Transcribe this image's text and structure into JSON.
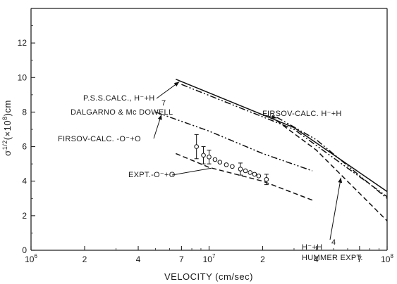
{
  "chart_data": {
    "type": "line",
    "x_scale": "log",
    "xlim": [
      1000000,
      100000000
    ],
    "ylim": [
      0,
      14
    ],
    "grid": false,
    "xlabel": "VELOCITY (cm/sec)",
    "ylabel": {
      "base": "σ",
      "sup": "1/2",
      "rest": "(×10",
      "sup2": "8",
      "tail": ")cm"
    },
    "x_ticks": [
      {
        "value": 1000000,
        "base": "10",
        "exp": "6"
      },
      {
        "value": 2000000,
        "label": "2"
      },
      {
        "value": 4000000,
        "label": "4"
      },
      {
        "value": 7000000,
        "label": "7"
      },
      {
        "value": 10000000,
        "base": "10",
        "exp": "7"
      },
      {
        "value": 20000000,
        "label": "2"
      },
      {
        "value": 40000000,
        "label": "4"
      },
      {
        "value": 70000000,
        "label": "7"
      },
      {
        "value": 100000000,
        "base": "10",
        "exp": "8"
      }
    ],
    "y_ticks": [
      0,
      2,
      4,
      6,
      8,
      10,
      12
    ],
    "series": [
      {
        "key": "pss",
        "dash": "solid",
        "x": [
          6500000,
          30000000,
          100000000
        ],
        "y": [
          9.9,
          7.1,
          3.4
        ]
      },
      {
        "key": "dalgarno",
        "dash": "dashdotdot",
        "x": [
          7000000,
          30000000,
          100000000
        ],
        "y": [
          9.6,
          7.0,
          3.1
        ]
      },
      {
        "key": "firsov_h",
        "dash": "dashdotdot",
        "x": [
          24000000,
          40000000,
          100000000
        ],
        "y": [
          7.7,
          6.4,
          3.0
        ]
      },
      {
        "key": "hummer",
        "dash": "dashed",
        "x": [
          24000000,
          40000000,
          100000000
        ],
        "y": [
          7.5,
          5.8,
          1.7
        ]
      },
      {
        "key": "firsov_o",
        "dash": "dashdotdot",
        "x": [
          5000000,
          10000000,
          20000000,
          38000000
        ],
        "y": [
          8.0,
          6.9,
          5.6,
          4.6
        ]
      },
      {
        "key": "expt_fit",
        "dash": "dashed",
        "x": [
          6500000,
          10000000,
          20000000,
          38000000
        ],
        "y": [
          5.6,
          4.8,
          4.0,
          2.9
        ]
      }
    ],
    "expt_points": [
      {
        "x": 8500000,
        "y": 6.0,
        "err": 0.7
      },
      {
        "x": 9300000,
        "y": 5.5,
        "err": 0.5
      },
      {
        "x": 10000000,
        "y": 5.4,
        "err": 0.4
      },
      {
        "x": 10800000,
        "y": 5.25,
        "err": 0
      },
      {
        "x": 11500000,
        "y": 5.1,
        "err": 0
      },
      {
        "x": 12500000,
        "y": 4.95,
        "err": 0
      },
      {
        "x": 13500000,
        "y": 4.85,
        "err": 0
      },
      {
        "x": 15000000,
        "y": 4.7,
        "err": 0.35
      },
      {
        "x": 16000000,
        "y": 4.6,
        "err": 0
      },
      {
        "x": 17000000,
        "y": 4.5,
        "err": 0
      },
      {
        "x": 18000000,
        "y": 4.4,
        "err": 0
      },
      {
        "x": 19000000,
        "y": 4.3,
        "err": 0
      },
      {
        "x": 21000000,
        "y": 4.1,
        "err": 0.3
      }
    ],
    "annotations": [
      {
        "key": "pss",
        "text": "P.S.S.CALC., H⁻+H"
      },
      {
        "key": "dalgarno",
        "text": "DALGARNO & Mc DOWELL"
      },
      {
        "key": "firsov_h",
        "text": "FIRSOV-CALC. H⁻+H"
      },
      {
        "key": "firsov_o",
        "text": "FIRSOV-CALC. -O⁻+O"
      },
      {
        "key": "expt",
        "text": "EXPT.-O⁻+O"
      },
      {
        "key": "hummer1",
        "text": "H⁻+H"
      },
      {
        "key": "hummer_num",
        "text": "4"
      },
      {
        "key": "hummer2",
        "text": "HUMMER EXPT."
      },
      {
        "key": "pss_num",
        "text": "7"
      }
    ]
  }
}
